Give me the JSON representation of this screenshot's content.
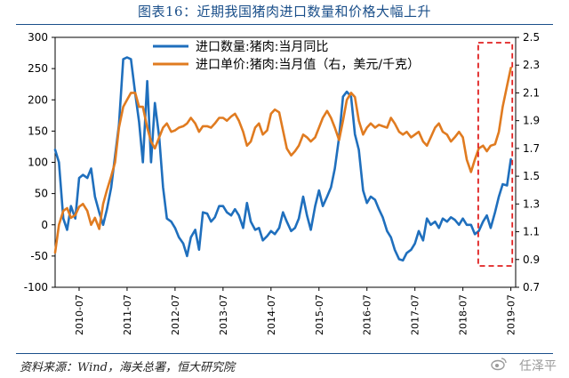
{
  "figure": {
    "title": "图表16：近期我国猪肉进口数量和价格大幅上升",
    "source": "资料来源：Wind，海关总署，恒大研究院",
    "watermark": "任泽平"
  },
  "chart_data": {
    "type": "line",
    "title": "",
    "x_tick_labels": [
      "2010-07",
      "2011-07",
      "2012-07",
      "2013-07",
      "2014-07",
      "2015-07",
      "2016-07",
      "2017-07",
      "2018-07",
      "2019-07"
    ],
    "y_left": {
      "min": -100,
      "max": 300,
      "ticks": [
        -100,
        -50,
        0,
        50,
        100,
        150,
        200,
        250,
        300
      ],
      "tick_labels": [
        "-100",
        "-50",
        "0",
        "50",
        "100",
        "150",
        "200",
        "250",
        "300"
      ]
    },
    "y_right": {
      "min": 0.7,
      "max": 2.5,
      "ticks": [
        0.7,
        0.9,
        1.1,
        1.3,
        1.5,
        1.7,
        1.9,
        2.1,
        2.3,
        2.5
      ],
      "tick_labels": [
        "0.7",
        "0.9",
        "1.1",
        "1.3",
        "1.5",
        "1.7",
        "1.9",
        "2.1",
        "2.3",
        "2.5"
      ]
    },
    "x_range": [
      2010.0,
      2019.6
    ],
    "series": [
      {
        "name": "进口数量:猪肉:当月同比",
        "axis": "left",
        "color": "#1f6fbd",
        "points": [
          [
            2010.0,
            120
          ],
          [
            2010.08,
            100
          ],
          [
            2010.17,
            10
          ],
          [
            2010.25,
            -8
          ],
          [
            2010.33,
            30
          ],
          [
            2010.42,
            10
          ],
          [
            2010.5,
            75
          ],
          [
            2010.58,
            80
          ],
          [
            2010.67,
            75
          ],
          [
            2010.75,
            90
          ],
          [
            2010.83,
            45
          ],
          [
            2010.92,
            20
          ],
          [
            2011.0,
            0
          ],
          [
            2011.08,
            25
          ],
          [
            2011.17,
            60
          ],
          [
            2011.25,
            110
          ],
          [
            2011.33,
            160
          ],
          [
            2011.42,
            265
          ],
          [
            2011.5,
            268
          ],
          [
            2011.58,
            265
          ],
          [
            2011.67,
            210
          ],
          [
            2011.75,
            165
          ],
          [
            2011.83,
            100
          ],
          [
            2011.92,
            230
          ],
          [
            2012.0,
            100
          ],
          [
            2012.08,
            195
          ],
          [
            2012.17,
            140
          ],
          [
            2012.25,
            60
          ],
          [
            2012.33,
            10
          ],
          [
            2012.42,
            5
          ],
          [
            2012.5,
            -5
          ],
          [
            2012.58,
            -20
          ],
          [
            2012.67,
            -30
          ],
          [
            2012.75,
            -50
          ],
          [
            2012.83,
            -20
          ],
          [
            2012.92,
            -8
          ],
          [
            2013.0,
            -40
          ],
          [
            2013.08,
            20
          ],
          [
            2013.17,
            18
          ],
          [
            2013.25,
            5
          ],
          [
            2013.33,
            12
          ],
          [
            2013.42,
            30
          ],
          [
            2013.5,
            30
          ],
          [
            2013.58,
            20
          ],
          [
            2013.67,
            15
          ],
          [
            2013.75,
            25
          ],
          [
            2013.83,
            15
          ],
          [
            2013.92,
            -5
          ],
          [
            2014.0,
            35
          ],
          [
            2014.08,
            5
          ],
          [
            2014.17,
            -8
          ],
          [
            2014.25,
            -5
          ],
          [
            2014.33,
            -25
          ],
          [
            2014.42,
            -18
          ],
          [
            2014.5,
            -10
          ],
          [
            2014.58,
            -15
          ],
          [
            2014.67,
            -5
          ],
          [
            2014.75,
            20
          ],
          [
            2014.83,
            5
          ],
          [
            2014.92,
            -10
          ],
          [
            2015.0,
            -5
          ],
          [
            2015.08,
            10
          ],
          [
            2015.17,
            45
          ],
          [
            2015.25,
            15
          ],
          [
            2015.33,
            -8
          ],
          [
            2015.42,
            30
          ],
          [
            2015.5,
            55
          ],
          [
            2015.58,
            30
          ],
          [
            2015.67,
            45
          ],
          [
            2015.75,
            60
          ],
          [
            2015.83,
            90
          ],
          [
            2015.92,
            140
          ],
          [
            2016.0,
            205
          ],
          [
            2016.08,
            213
          ],
          [
            2016.17,
            205
          ],
          [
            2016.25,
            145
          ],
          [
            2016.33,
            120
          ],
          [
            2016.42,
            55
          ],
          [
            2016.5,
            35
          ],
          [
            2016.58,
            45
          ],
          [
            2016.67,
            40
          ],
          [
            2016.75,
            25
          ],
          [
            2016.83,
            12
          ],
          [
            2016.92,
            -10
          ],
          [
            2017.0,
            -20
          ],
          [
            2017.08,
            -40
          ],
          [
            2017.17,
            -55
          ],
          [
            2017.25,
            -57
          ],
          [
            2017.33,
            -45
          ],
          [
            2017.42,
            -40
          ],
          [
            2017.5,
            -30
          ],
          [
            2017.58,
            -10
          ],
          [
            2017.67,
            -25
          ],
          [
            2017.75,
            10
          ],
          [
            2017.83,
            0
          ],
          [
            2017.92,
            5
          ],
          [
            2018.0,
            -5
          ],
          [
            2018.08,
            10
          ],
          [
            2018.17,
            5
          ],
          [
            2018.25,
            12
          ],
          [
            2018.33,
            8
          ],
          [
            2018.42,
            0
          ],
          [
            2018.5,
            10
          ],
          [
            2018.58,
            0
          ],
          [
            2018.67,
            0
          ],
          [
            2018.75,
            -15
          ],
          [
            2018.83,
            -10
          ],
          [
            2018.92,
            5
          ],
          [
            2019.0,
            15
          ],
          [
            2019.08,
            -5
          ],
          [
            2019.17,
            20
          ],
          [
            2019.25,
            45
          ],
          [
            2019.33,
            65
          ],
          [
            2019.42,
            63
          ],
          [
            2019.5,
            105
          ]
        ]
      },
      {
        "name": "进口单价:猪肉:当月值（右，美元/千克）",
        "axis": "right",
        "color": "#e07b20",
        "points": [
          [
            2010.0,
            0.95
          ],
          [
            2010.08,
            1.15
          ],
          [
            2010.17,
            1.25
          ],
          [
            2010.25,
            1.27
          ],
          [
            2010.33,
            1.2
          ],
          [
            2010.42,
            1.22
          ],
          [
            2010.5,
            1.28
          ],
          [
            2010.58,
            1.3
          ],
          [
            2010.67,
            1.25
          ],
          [
            2010.75,
            1.15
          ],
          [
            2010.83,
            1.2
          ],
          [
            2010.92,
            1.12
          ],
          [
            2011.0,
            1.3
          ],
          [
            2011.08,
            1.4
          ],
          [
            2011.17,
            1.5
          ],
          [
            2011.25,
            1.6
          ],
          [
            2011.33,
            1.85
          ],
          [
            2011.42,
            2.0
          ],
          [
            2011.5,
            2.05
          ],
          [
            2011.58,
            2.1
          ],
          [
            2011.67,
            2.1
          ],
          [
            2011.75,
            2.0
          ],
          [
            2011.83,
            2.0
          ],
          [
            2011.92,
            1.85
          ],
          [
            2012.0,
            1.75
          ],
          [
            2012.08,
            1.7
          ],
          [
            2012.17,
            1.78
          ],
          [
            2012.25,
            1.85
          ],
          [
            2012.33,
            1.88
          ],
          [
            2012.42,
            1.82
          ],
          [
            2012.5,
            1.83
          ],
          [
            2012.58,
            1.85
          ],
          [
            2012.67,
            1.86
          ],
          [
            2012.75,
            1.88
          ],
          [
            2012.83,
            1.92
          ],
          [
            2012.92,
            1.88
          ],
          [
            2013.0,
            1.82
          ],
          [
            2013.08,
            1.86
          ],
          [
            2013.17,
            1.86
          ],
          [
            2013.25,
            1.85
          ],
          [
            2013.33,
            1.88
          ],
          [
            2013.42,
            1.92
          ],
          [
            2013.5,
            1.92
          ],
          [
            2013.58,
            1.9
          ],
          [
            2013.67,
            1.93
          ],
          [
            2013.75,
            1.95
          ],
          [
            2013.83,
            1.9
          ],
          [
            2013.92,
            1.82
          ],
          [
            2014.0,
            1.72
          ],
          [
            2014.08,
            1.75
          ],
          [
            2014.17,
            1.85
          ],
          [
            2014.25,
            1.88
          ],
          [
            2014.33,
            1.8
          ],
          [
            2014.42,
            1.83
          ],
          [
            2014.5,
            1.95
          ],
          [
            2014.58,
            1.98
          ],
          [
            2014.67,
            1.96
          ],
          [
            2014.75,
            1.83
          ],
          [
            2014.83,
            1.7
          ],
          [
            2014.92,
            1.65
          ],
          [
            2015.0,
            1.68
          ],
          [
            2015.08,
            1.72
          ],
          [
            2015.17,
            1.8
          ],
          [
            2015.25,
            1.78
          ],
          [
            2015.33,
            1.75
          ],
          [
            2015.42,
            1.78
          ],
          [
            2015.5,
            1.85
          ],
          [
            2015.58,
            1.92
          ],
          [
            2015.67,
            1.97
          ],
          [
            2015.75,
            1.92
          ],
          [
            2015.83,
            1.85
          ],
          [
            2015.92,
            1.76
          ],
          [
            2016.0,
            1.9
          ],
          [
            2016.08,
            2.05
          ],
          [
            2016.17,
            2.1
          ],
          [
            2016.25,
            2.07
          ],
          [
            2016.33,
            1.9
          ],
          [
            2016.42,
            1.8
          ],
          [
            2016.5,
            1.85
          ],
          [
            2016.58,
            1.88
          ],
          [
            2016.67,
            1.85
          ],
          [
            2016.75,
            1.87
          ],
          [
            2016.83,
            1.86
          ],
          [
            2016.92,
            1.85
          ],
          [
            2017.0,
            1.92
          ],
          [
            2017.08,
            1.88
          ],
          [
            2017.17,
            1.82
          ],
          [
            2017.25,
            1.8
          ],
          [
            2017.33,
            1.82
          ],
          [
            2017.42,
            1.78
          ],
          [
            2017.5,
            1.8
          ],
          [
            2017.58,
            1.82
          ],
          [
            2017.67,
            1.75
          ],
          [
            2017.75,
            1.72
          ],
          [
            2017.83,
            1.78
          ],
          [
            2017.92,
            1.85
          ],
          [
            2018.0,
            1.88
          ],
          [
            2018.08,
            1.82
          ],
          [
            2018.17,
            1.8
          ],
          [
            2018.25,
            1.75
          ],
          [
            2018.33,
            1.78
          ],
          [
            2018.42,
            1.82
          ],
          [
            2018.5,
            1.78
          ],
          [
            2018.58,
            1.62
          ],
          [
            2018.67,
            1.53
          ],
          [
            2018.75,
            1.62
          ],
          [
            2018.83,
            1.7
          ],
          [
            2018.92,
            1.72
          ],
          [
            2019.0,
            1.68
          ],
          [
            2019.08,
            1.72
          ],
          [
            2019.17,
            1.73
          ],
          [
            2019.25,
            1.82
          ],
          [
            2019.33,
            2.0
          ],
          [
            2019.42,
            2.15
          ],
          [
            2019.5,
            2.28
          ]
        ]
      }
    ],
    "highlight_box": {
      "x_from": 2018.82,
      "x_to": 2019.53,
      "style": "dashed",
      "color": "#e02020"
    },
    "legend_position": "top-left"
  }
}
